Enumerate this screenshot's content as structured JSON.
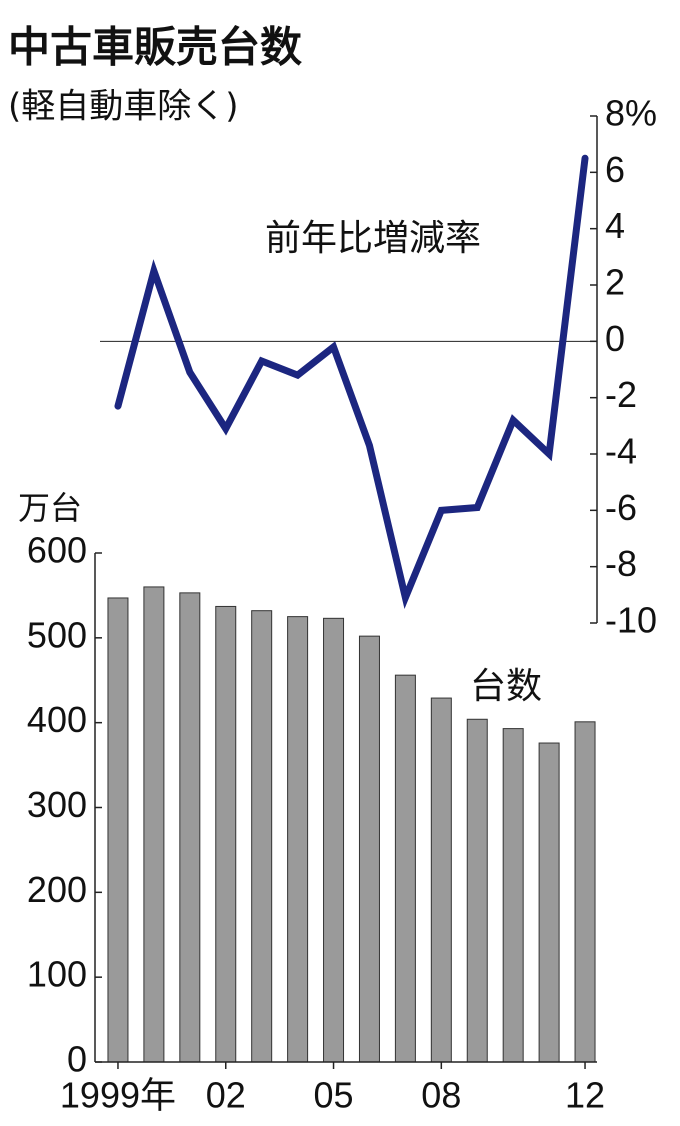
{
  "chart_data": [
    {
      "type": "bar",
      "title": "中古車販売台数",
      "subtitle": "(軽自動車除く)",
      "y_label": "万台",
      "series_label": "台数",
      "categories": [
        "1999年",
        null,
        null,
        "02",
        null,
        null,
        "05",
        null,
        null,
        "08",
        null,
        null,
        null,
        "12"
      ],
      "values": [
        547,
        560,
        553,
        537,
        532,
        525,
        523,
        502,
        456,
        429,
        404,
        393,
        376,
        401
      ],
      "color": "#9a9a9a",
      "ylim": [
        0,
        600
      ],
      "yticks": [
        0,
        100,
        200,
        300,
        400,
        500,
        600
      ]
    },
    {
      "type": "line",
      "series_label": "前年比増減率",
      "values": [
        -2.3,
        2.5,
        -1.1,
        -3.1,
        -0.7,
        -1.2,
        -0.2,
        -3.7,
        -9.1,
        -6.0,
        -5.9,
        -2.8,
        -4.0,
        6.5
      ],
      "color": "#1c2680",
      "ylim": [
        -10,
        8
      ],
      "yticks": [
        {
          "value": 8,
          "label": "8%"
        },
        6,
        4,
        2,
        0,
        -2,
        -4,
        -6,
        -8,
        -10
      ]
    }
  ]
}
